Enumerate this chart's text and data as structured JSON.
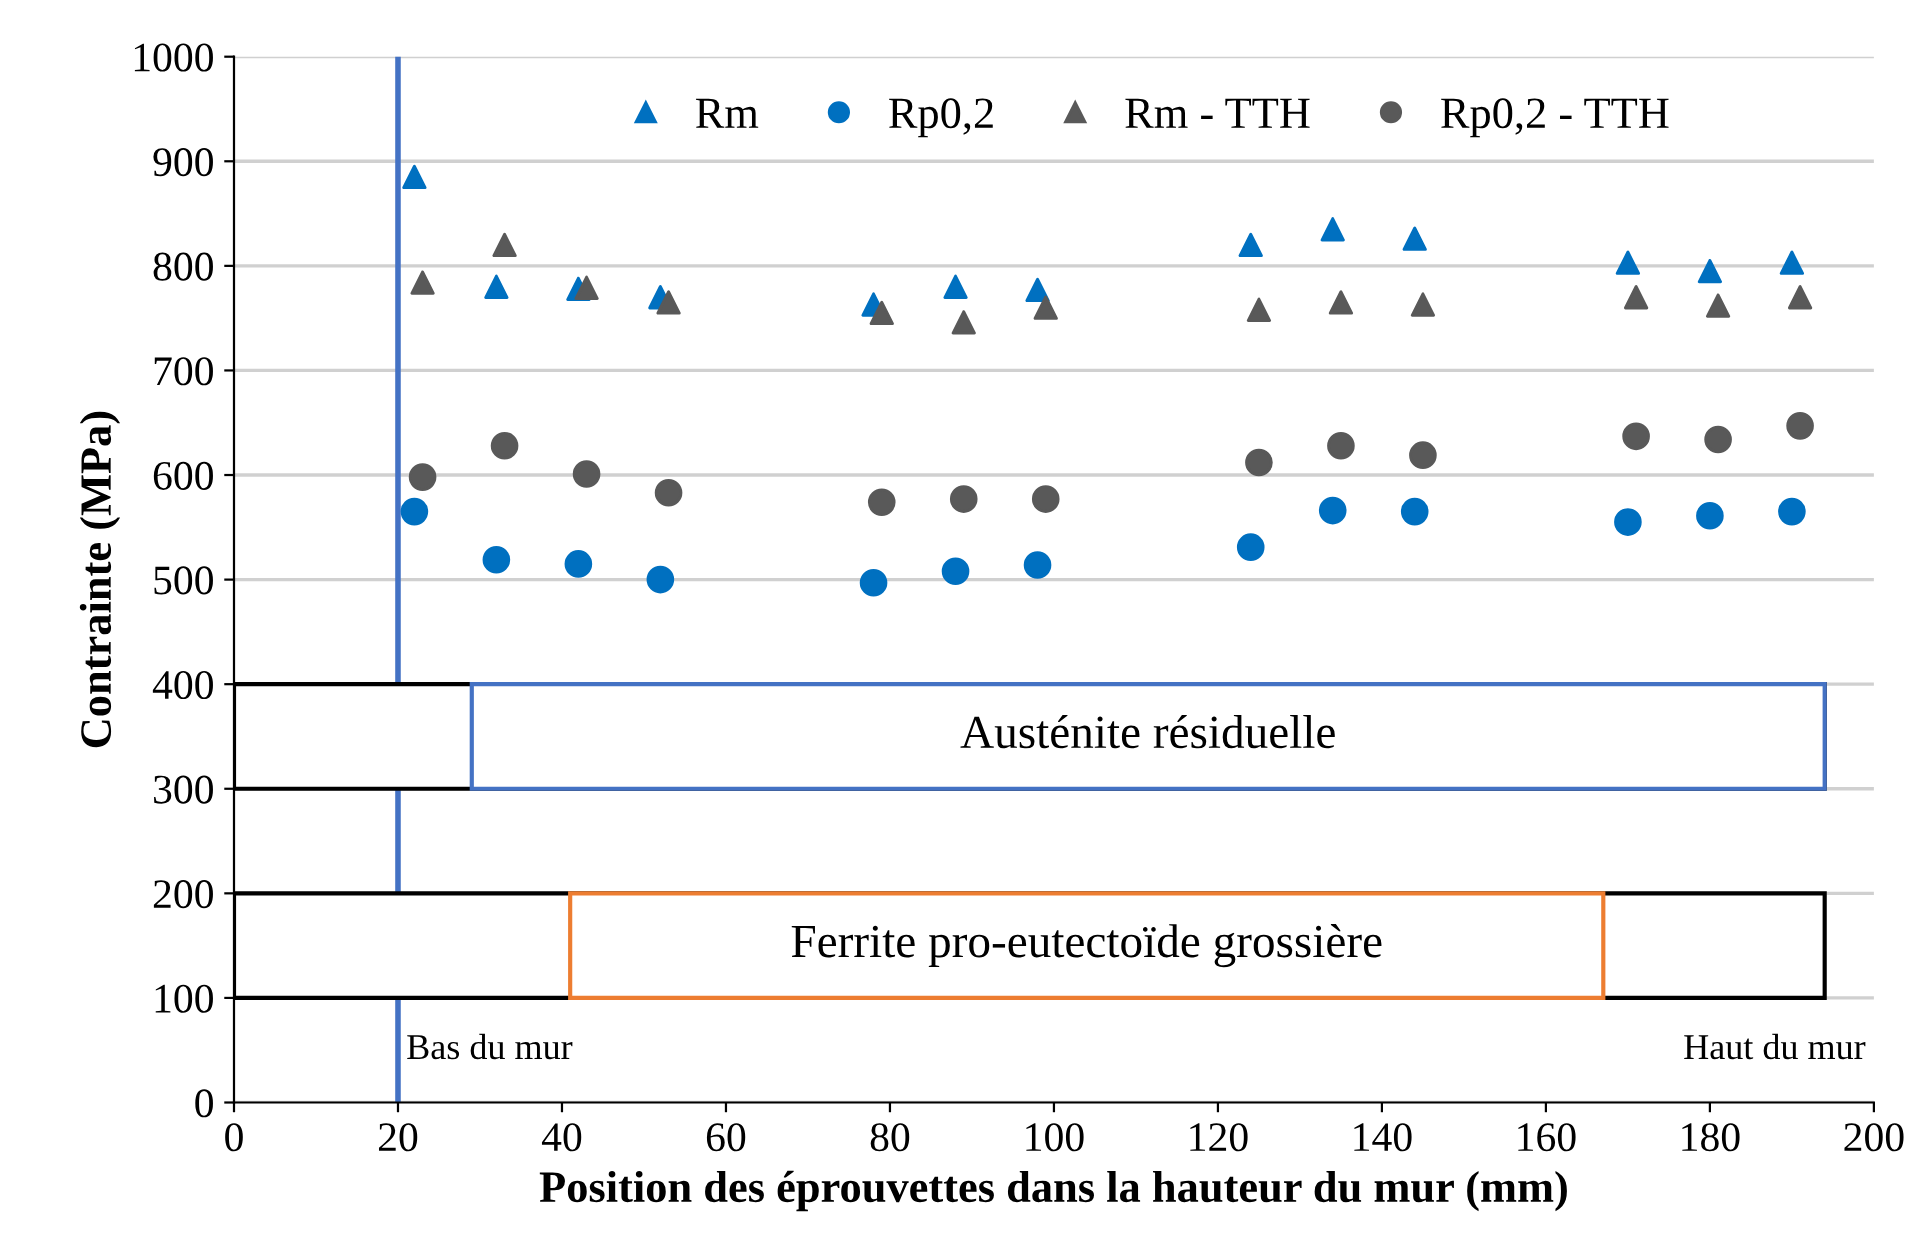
{
  "chart_data": {
    "type": "scatter",
    "xlabel": "Position des éprouvettes dans la hauteur du mur (mm)",
    "ylabel": "Contrainte (MPa)",
    "xlim": [
      0,
      200
    ],
    "xticks": [
      0,
      20,
      40,
      60,
      80,
      100,
      120,
      140,
      160,
      180,
      200
    ],
    "ylim": [
      0,
      1000
    ],
    "yticks": [
      0,
      100,
      200,
      300,
      400,
      500,
      600,
      700,
      800,
      900,
      1000
    ],
    "grid": "y",
    "legend": "top right",
    "series": [
      {
        "name": "Rm",
        "color": "#0070c0",
        "marker": "triangle",
        "x": [
          22,
          32,
          42,
          52,
          78,
          88,
          98,
          124,
          134,
          144,
          170,
          180,
          190
        ],
        "values": [
          885,
          780,
          778,
          770,
          763,
          780,
          777,
          820,
          835,
          826,
          803,
          795,
          803
        ]
      },
      {
        "name": "Rp0,2",
        "color": "#0070c0",
        "marker": "circle",
        "x": [
          22,
          32,
          42,
          52,
          78,
          88,
          98,
          124,
          134,
          144,
          170,
          180,
          190
        ],
        "values": [
          565,
          519,
          515,
          500,
          497,
          508,
          514,
          531,
          566,
          565,
          555,
          561,
          565
        ]
      },
      {
        "name": "Rm - TTH",
        "color": "#595959",
        "marker": "triangle",
        "x": [
          23,
          33,
          43,
          53,
          79,
          89,
          99,
          125,
          135,
          145,
          171,
          181,
          191
        ],
        "values": [
          784,
          820,
          779,
          765,
          755,
          746,
          760,
          758,
          765,
          763,
          770,
          762,
          770
        ]
      },
      {
        "name": "Rp0,2 - TTH",
        "color": "#595959",
        "marker": "circle",
        "x": [
          23,
          33,
          43,
          53,
          79,
          89,
          99,
          125,
          135,
          145,
          171,
          181,
          191
        ],
        "values": [
          598,
          628,
          601,
          583,
          574,
          577,
          577,
          612,
          628,
          619,
          637,
          634,
          647
        ]
      }
    ],
    "ref_lines": [
      {
        "axis": "x",
        "value": 20,
        "color": "#4472c4"
      }
    ],
    "bands": [
      {
        "axis": "x",
        "from": 0,
        "to": 194,
        "color": "#000000"
      },
      {
        "axis": "x",
        "from": 29,
        "to": 194,
        "color": "#4472c4",
        "label": "Austénite résiduelle"
      },
      {
        "axis": "x",
        "from": 0,
        "to": 194,
        "color": "#000000"
      },
      {
        "axis": "x",
        "from": 41,
        "to": 167,
        "color": "#ed7d31",
        "label": "Ferrite pro-eutectoïde grossière"
      }
    ],
    "annotations": [
      "Bas du mur",
      "Haut du mur"
    ]
  }
}
